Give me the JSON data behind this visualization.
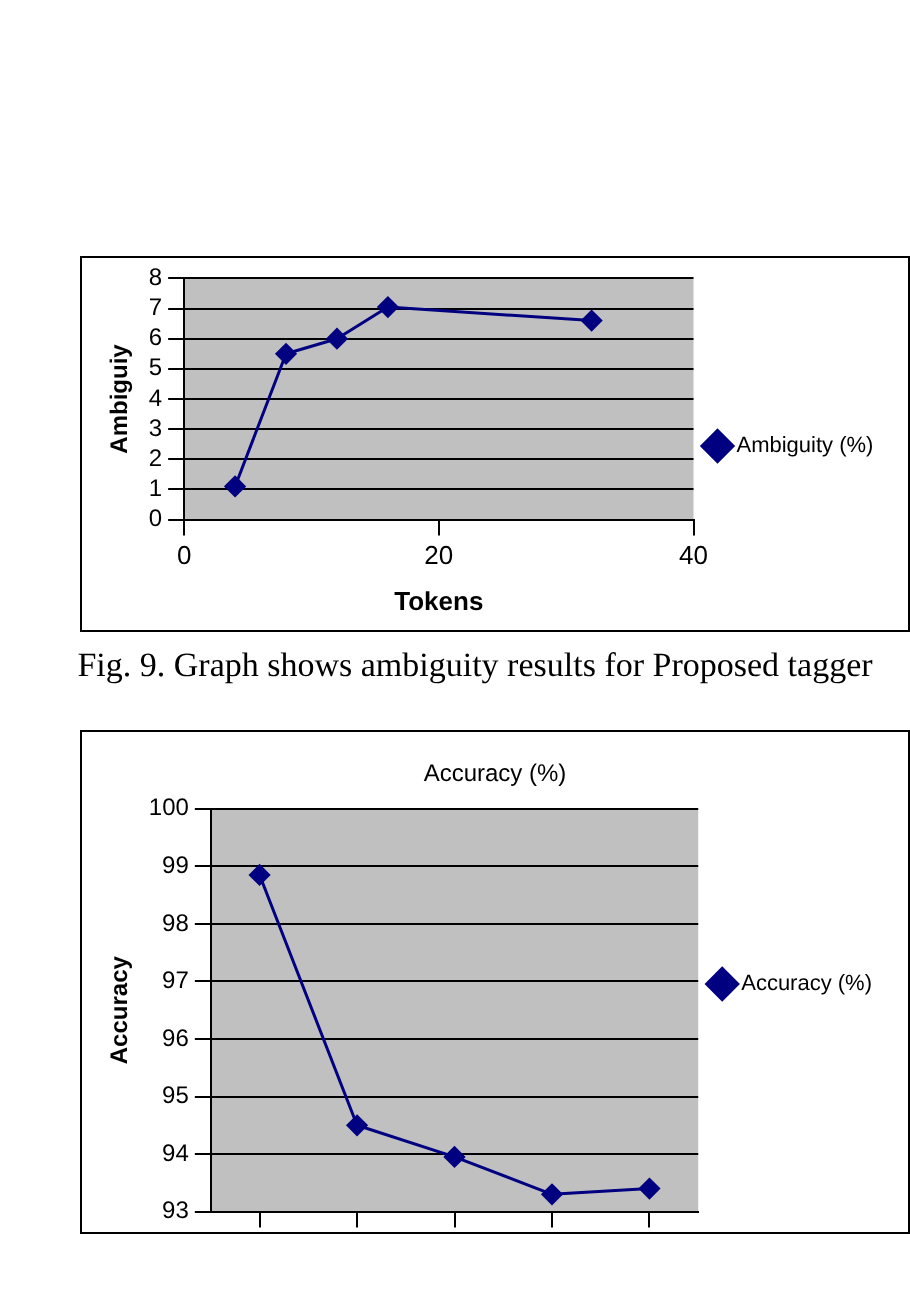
{
  "chart_data": [
    {
      "type": "line",
      "xlabel": "Tokens",
      "ylabel": "Ambiguiy",
      "x": [
        4,
        8,
        12,
        16,
        32
      ],
      "series": [
        {
          "name": "Ambiguity (%)",
          "color": "#000080",
          "values": [
            1.1,
            5.5,
            6.0,
            7.05,
            6.6
          ]
        }
      ],
      "xlim": [
        0,
        40
      ],
      "xticks": [
        0,
        20,
        40
      ],
      "ylim": [
        0,
        8
      ],
      "yticks": [
        0,
        1,
        2,
        3,
        4,
        5,
        6,
        7,
        8
      ],
      "grid": "y",
      "legend": "right",
      "marker": "diamond",
      "line_style": "solid",
      "annotations": [
        "Fig. 9. Graph shows ambiguity results for Proposed tagger"
      ]
    },
    {
      "type": "line",
      "title": "Accuracy (%)",
      "ylabel": "Accuracy",
      "categories": [
        null,
        null,
        null,
        null,
        null
      ],
      "series": [
        {
          "name": "Accuracy (%)",
          "color": "#000080",
          "values": [
            98.85,
            94.5,
            93.95,
            93.3,
            93.4
          ]
        }
      ],
      "ylim": [
        93,
        100
      ],
      "yticks": [
        93,
        94,
        95,
        96,
        97,
        98,
        99,
        100
      ],
      "grid": "y",
      "legend": "right",
      "marker": "diamond",
      "line_style": "solid",
      "tick_labels": "y"
    }
  ]
}
